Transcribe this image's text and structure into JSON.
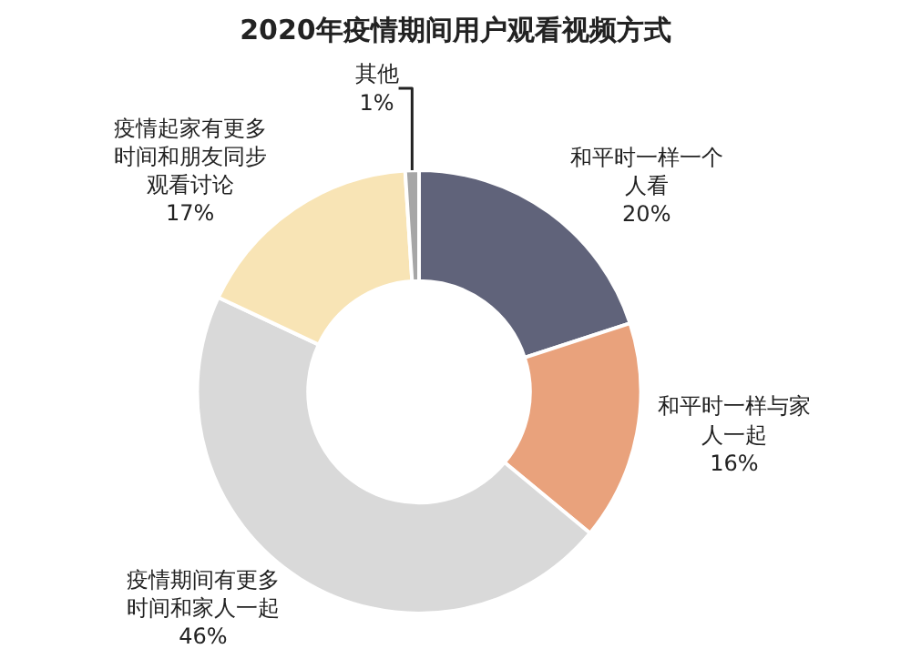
{
  "chart_data": {
    "type": "donut",
    "title": "2020年疫情期间用户观看视频方式",
    "categories": [
      "和平时一样一个人看",
      "和平时一样与家人一起",
      "疫情期间有更多时间和家人一起",
      "疫情起家有更多时间和朋友同步观看讨论",
      "其他"
    ],
    "values": [
      20,
      16,
      46,
      17,
      1
    ],
    "value_labels": [
      "20%",
      "16%",
      "46%",
      "17%",
      "1%"
    ],
    "colors": [
      "#60637a",
      "#e9a27c",
      "#d9d9d9",
      "#f8e4b5",
      "#a6a6a6"
    ],
    "legend": false
  }
}
